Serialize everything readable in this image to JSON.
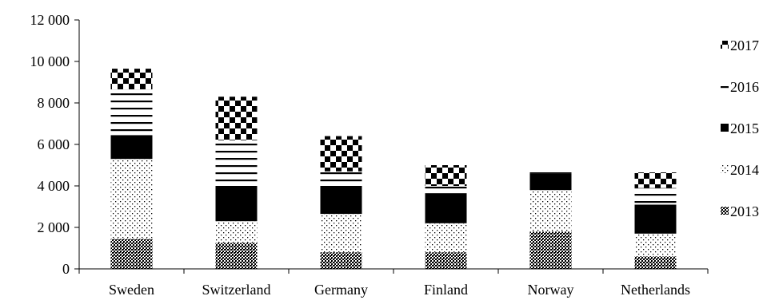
{
  "chart_data": {
    "type": "bar",
    "stacked": true,
    "categories": [
      "Sweden",
      "Switzerland",
      "Germany",
      "Finland",
      "Norway",
      "Netherlands"
    ],
    "series": [
      {
        "name": "2013",
        "pattern": "dense-dots",
        "values": [
          1450,
          1250,
          800,
          800,
          1800,
          600
        ]
      },
      {
        "name": "2014",
        "pattern": "sparse-dots",
        "values": [
          3850,
          1050,
          1850,
          1400,
          2000,
          1100
        ]
      },
      {
        "name": "2015",
        "pattern": "solid-black",
        "values": [
          1150,
          1700,
          1350,
          1450,
          800,
          1400
        ]
      },
      {
        "name": "2016",
        "pattern": "horizontal-lines",
        "values": [
          2200,
          2200,
          700,
          350,
          250,
          800
        ]
      },
      {
        "name": "2017",
        "pattern": "checker",
        "values": [
          1000,
          2100,
          1700,
          1000,
          0,
          750
        ]
      }
    ],
    "yaxis": {
      "min": 0,
      "max": 12000,
      "ticks": [
        0,
        2000,
        4000,
        6000,
        8000,
        10000,
        12000
      ],
      "tick_labels": [
        "0",
        "2 000",
        "4 000",
        "6 000",
        "8 000",
        "10 000",
        "12 000"
      ]
    },
    "legend": {
      "placement": "right",
      "order": [
        "2017",
        "2016",
        "2015",
        "2014",
        "2013"
      ]
    },
    "grid": false,
    "colors": {
      "ink": "#000000",
      "background": "#ffffff"
    }
  }
}
